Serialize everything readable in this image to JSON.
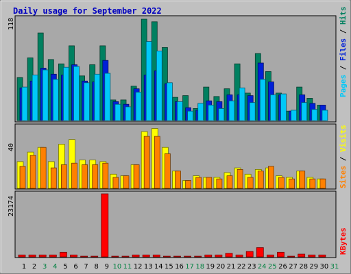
{
  "chart_data": {
    "type": "bar",
    "title": "Daily usage for September 2022",
    "categories": [
      "1",
      "2",
      "3",
      "4",
      "5",
      "6",
      "7",
      "8",
      "9",
      "10",
      "11",
      "12",
      "13",
      "14",
      "15",
      "16",
      "17",
      "18",
      "19",
      "20",
      "21",
      "22",
      "23",
      "24",
      "25",
      "26",
      "27",
      "28",
      "29",
      "30",
      "31"
    ],
    "weekend_days": [
      "3",
      "4",
      "10",
      "11",
      "17",
      "18",
      "24",
      "25",
      "31"
    ],
    "panels": [
      {
        "id": "hits-files-pages",
        "ymax_label": "118",
        "ymax": 118,
        "side_label": [
          {
            "text": "Pages",
            "color": "#00c8f8"
          },
          {
            "text": " / ",
            "color": "#000000"
          },
          {
            "text": "Files",
            "color": "#0020d8"
          },
          {
            "text": " / ",
            "color": "#000000"
          },
          {
            "text": "Hits",
            "color": "#008060"
          }
        ],
        "series": [
          {
            "name": "Hits",
            "color": "#008060",
            "values": [
              50,
              73,
              102,
              71,
              66,
              87,
              52,
              65,
              87,
              24,
              24,
              40,
              118,
              115,
              85,
              27,
              29,
              14,
              39,
              28,
              37,
              66,
              32,
              78,
              57,
              32,
              11,
              39,
              26,
              18,
              null
            ]
          },
          {
            "name": "Files",
            "color": "#0020d8",
            "values": [
              38,
              46,
              61,
              54,
              53,
              65,
              46,
              45,
              70,
              22,
              19,
              37,
              53,
              58,
              43,
              22,
              15,
              12,
              23,
              22,
              30,
              30,
              29,
              67,
              45,
              30,
              11,
              30,
              20,
              18,
              null
            ]
          },
          {
            "name": "Pages",
            "color": "#00c8f8",
            "values": [
              39,
              53,
              59,
              48,
              62,
              63,
              44,
              54,
              55,
              19,
              16,
              33,
              92,
              81,
              44,
              22,
              11,
              20,
              18,
              14,
              23,
              38,
              21,
              48,
              30,
              31,
              12,
              21,
              13,
              12,
              null
            ]
          }
        ]
      },
      {
        "id": "visits-sites",
        "ymax_label": "40",
        "ymax": 40,
        "side_label": [
          {
            "text": "Sites",
            "color": "#ff8000"
          },
          {
            "text": " / ",
            "color": "#000000"
          },
          {
            "text": "Visits",
            "color": "#ffff00"
          }
        ],
        "series": [
          {
            "name": "Visits",
            "color": "#ffff00",
            "values": [
              17,
              23,
              26,
              17,
              28,
              31,
              18,
              18,
              17,
              9,
              8,
              15,
              36,
              38,
              26,
              11,
              5,
              8,
              7,
              7,
              10,
              13,
              9,
              12,
              13,
              8,
              7,
              11,
              7,
              6,
              null
            ]
          },
          {
            "name": "Sites",
            "color": "#ff8000",
            "values": [
              14,
              21,
              26,
              13,
              15,
              16,
              15,
              15,
              16,
              7,
              8,
              15,
              33,
              33,
              22,
              11,
              5,
              7,
              7,
              6,
              8,
              12,
              7,
              11,
              14,
              7,
              6,
              11,
              6,
              6,
              null
            ]
          }
        ]
      },
      {
        "id": "kbytes",
        "ymax_label": "23174",
        "ymax": 23174,
        "side_label": [
          {
            "text": "KBytes",
            "color": "#ff0000"
          }
        ],
        "series": [
          {
            "name": "KBytes",
            "color": "#ff0000",
            "values": [
              700,
              700,
              700,
              700,
              1700,
              700,
              250,
              250,
              23174,
              250,
              250,
              700,
              700,
              700,
              250,
              250,
              250,
              250,
              700,
              700,
              1300,
              700,
              2000,
              3400,
              700,
              1700,
              250,
              1000,
              700,
              700,
              null
            ]
          }
        ]
      }
    ]
  }
}
